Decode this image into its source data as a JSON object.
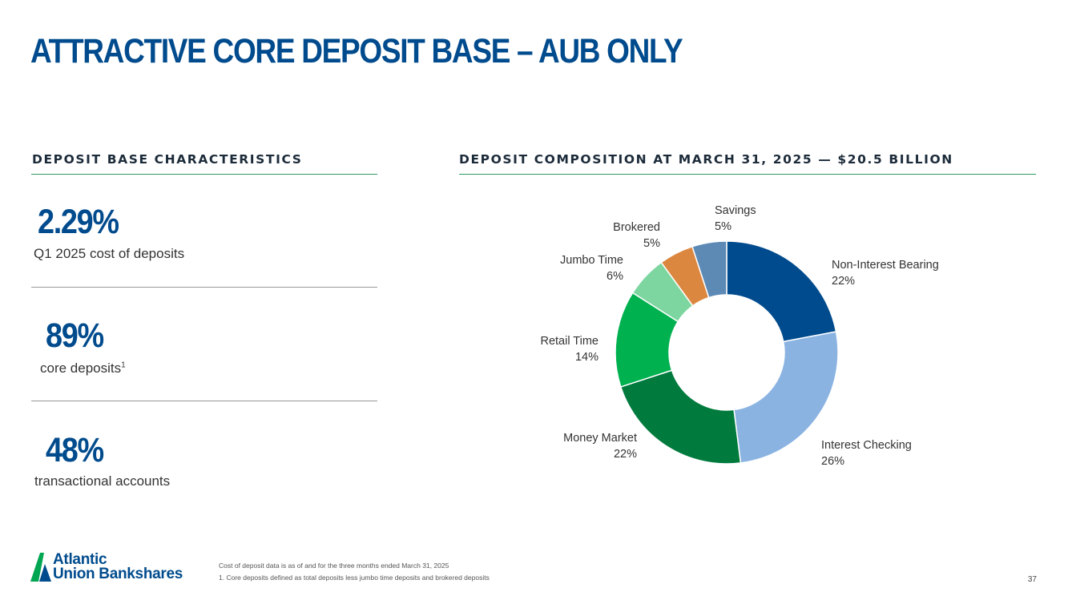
{
  "title": "ATTRACTIVE CORE DEPOSIT BASE – AUB ONLY",
  "left_section": {
    "header": "DEPOSIT BASE CHARACTERISTICS",
    "stats": [
      {
        "value": "2.29%",
        "label": "Q1 2025 cost of deposits"
      },
      {
        "value": "89%",
        "label": "core deposits",
        "superscript": "1"
      },
      {
        "value": "48%",
        "label": "transactional accounts"
      }
    ]
  },
  "right_section": {
    "header": "DEPOSIT COMPOSITION AT MARCH 31, 2025 — $20.5 BILLION"
  },
  "chart_data": {
    "type": "pie",
    "style": "donut",
    "title": "DEPOSIT COMPOSITION AT MARCH 31, 2025 — $20.5 BILLION",
    "categories": [
      "Non-Interest Bearing",
      "Interest Checking",
      "Money Market",
      "Retail Time",
      "Jumbo Time",
      "Brokered",
      "Savings"
    ],
    "values": [
      22,
      26,
      22,
      14,
      6,
      5,
      5
    ],
    "value_labels": [
      "22%",
      "26%",
      "22%",
      "14%",
      "6%",
      "5%",
      "5%"
    ],
    "colors": [
      "#004b8d",
      "#8ab3e2",
      "#007a3d",
      "#00b14f",
      "#7dd6a0",
      "#dc8740",
      "#5c8ab5"
    ]
  },
  "footer": {
    "logo_line1": "Atlantic",
    "logo_line2": "Union Bankshares",
    "footnotes": [
      "Cost of deposit data is as of and for the three months ended March 31, 2025",
      "1. Core deposits defined as total deposits less jumbo time deposits and brokered deposits"
    ],
    "page_number": "37",
    "brand_colors": {
      "green": "#00a651",
      "blue": "#004b8d"
    }
  }
}
